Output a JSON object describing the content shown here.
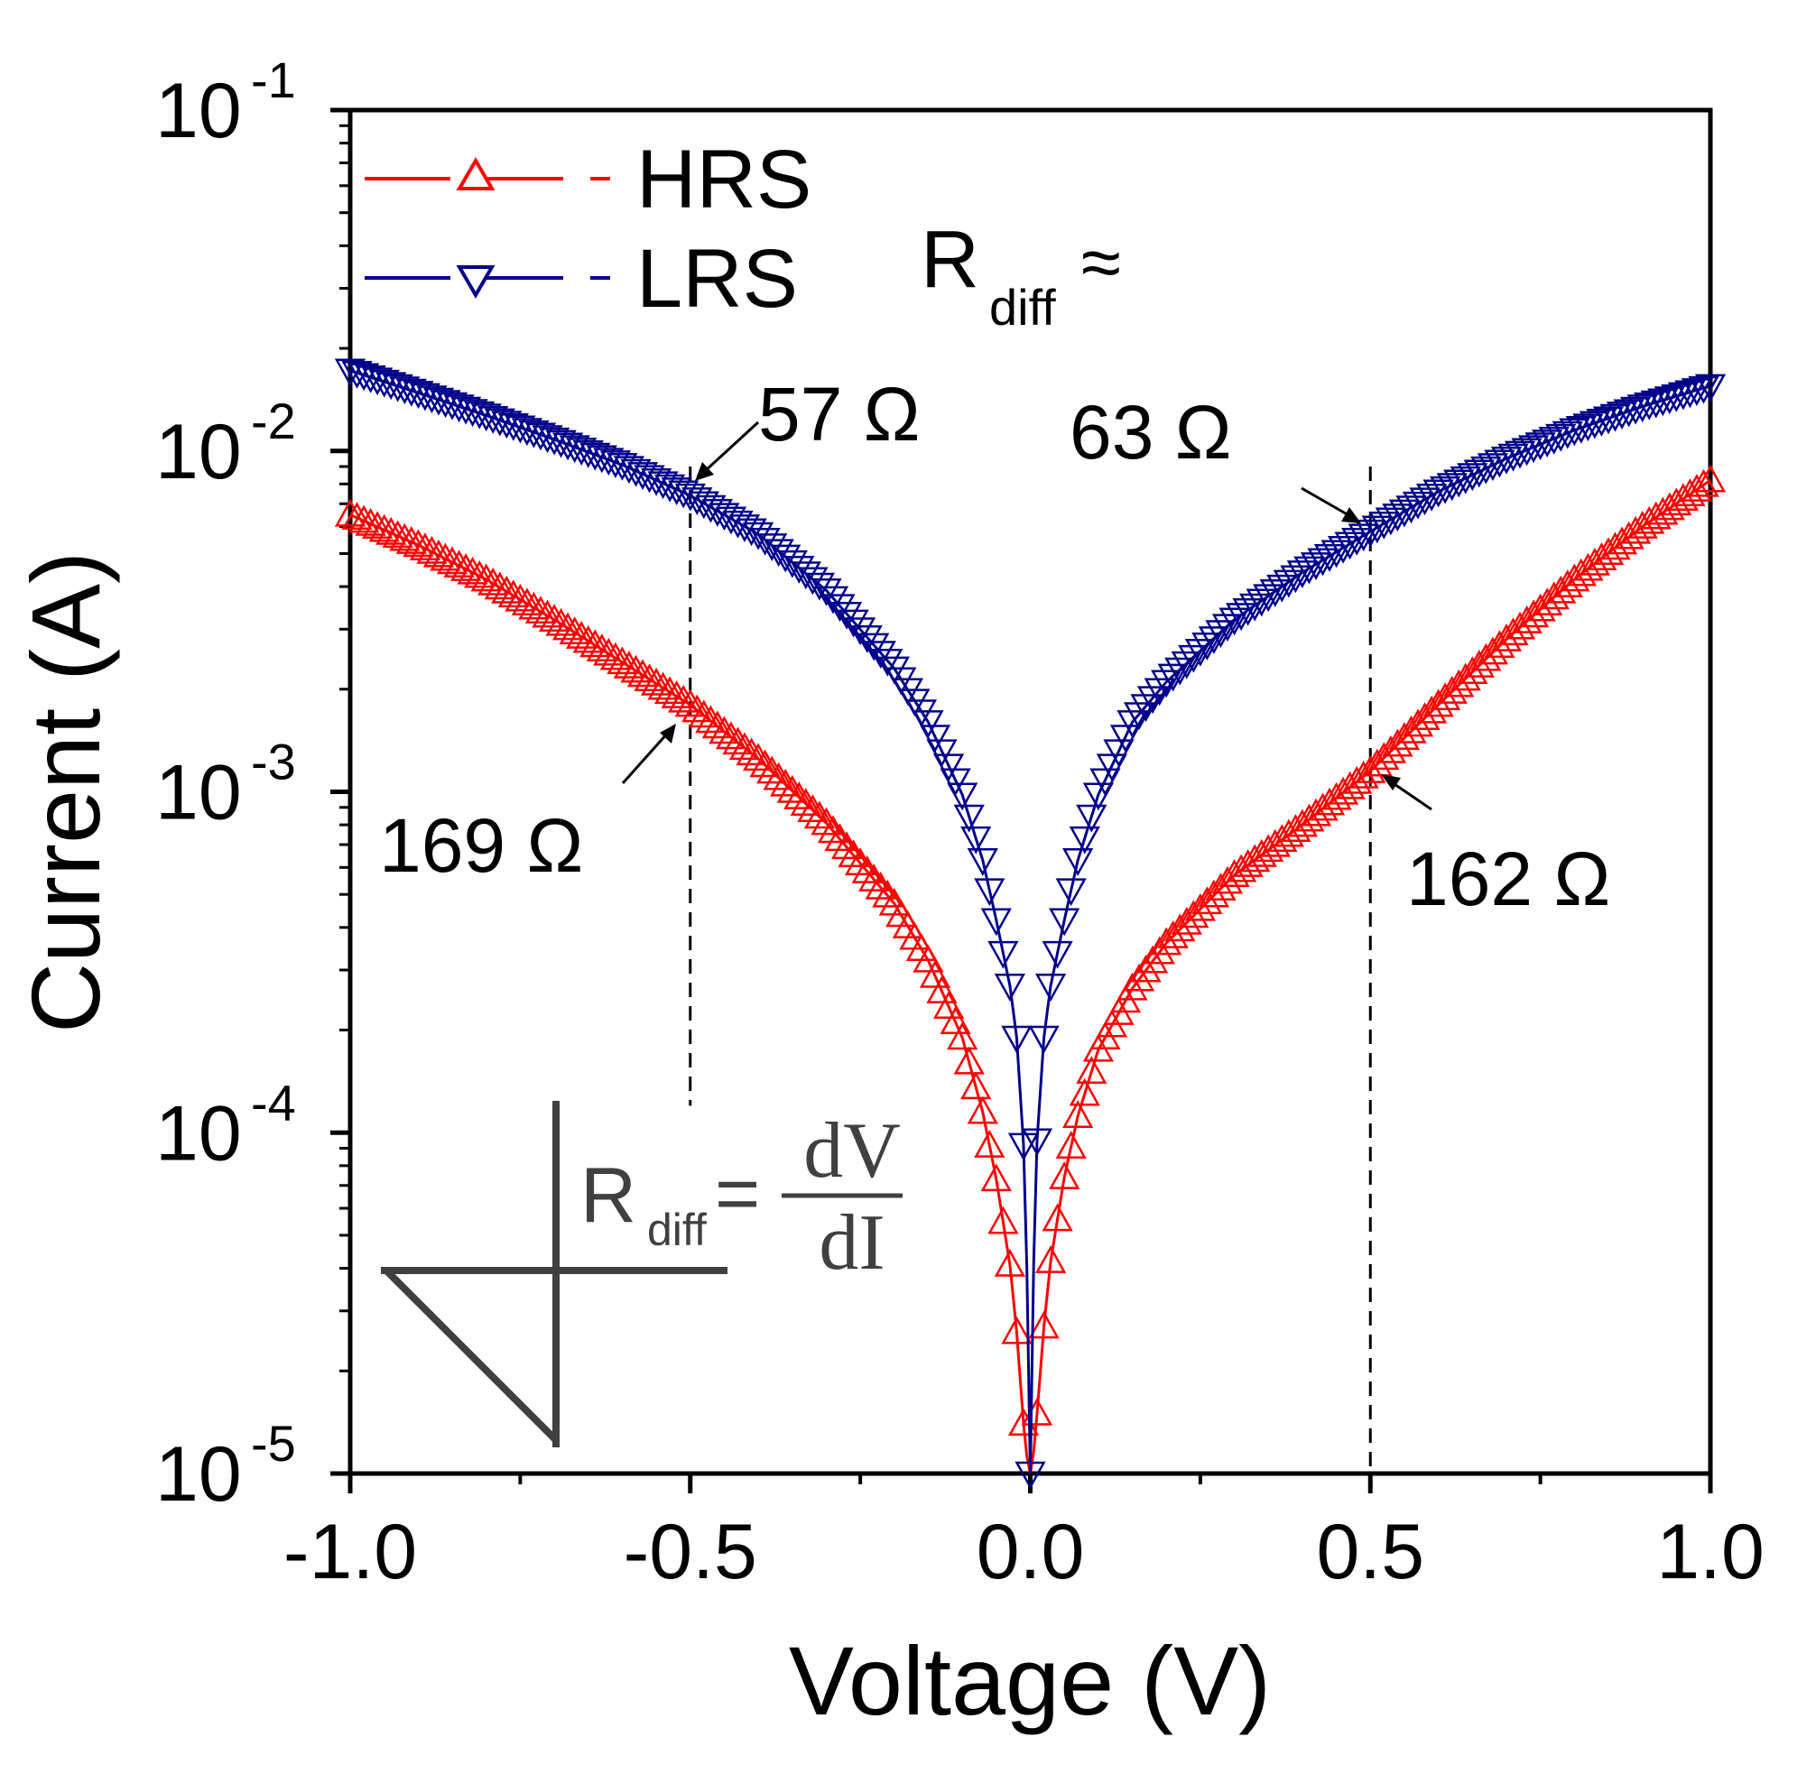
{
  "chart_data": {
    "type": "scatter",
    "title": "",
    "xlabel": "Voltage (V)",
    "ylabel": "Current (A)",
    "xlim": [
      -1.0,
      1.0
    ],
    "ylim": [
      1e-05,
      0.1
    ],
    "yscale": "log",
    "x_ticks": [
      "-1.0",
      "-0.5",
      "0.0",
      "0.5",
      "1.0"
    ],
    "y_ticks": [
      {
        "base": "10",
        "exp": "-5"
      },
      {
        "base": "10",
        "exp": "-4"
      },
      {
        "base": "10",
        "exp": "-3"
      },
      {
        "base": "10",
        "exp": "-2"
      },
      {
        "base": "10",
        "exp": "-1"
      }
    ],
    "legend_position": "top-left",
    "series": [
      {
        "name": "HRS",
        "color": "#ff0000",
        "marker": "triangle-up",
        "line": "dashed",
        "x": [
          -1.0,
          -0.9,
          -0.8,
          -0.7,
          -0.6,
          -0.5,
          -0.4,
          -0.3,
          -0.2,
          -0.15,
          -0.1,
          -0.07,
          -0.05,
          -0.03,
          -0.02,
          -0.01,
          0.0,
          0.01,
          0.02,
          0.03,
          0.05,
          0.07,
          0.1,
          0.15,
          0.2,
          0.3,
          0.4,
          0.5,
          0.6,
          0.7,
          0.8,
          0.9,
          1.0
        ],
        "y": [
          0.0065,
          0.0053,
          0.0042,
          0.0032,
          0.0024,
          0.0018,
          0.00125,
          0.00081,
          0.00047,
          0.00032,
          0.00019,
          0.000115,
          7.3e-05,
          4.1e-05,
          2.6e-05,
          1.4e-05,
          9e-06,
          1.5e-05,
          2.7e-05,
          4.2e-05,
          7.4e-05,
          0.000112,
          0.000175,
          0.000265,
          0.00036,
          0.00057,
          0.0008,
          0.00115,
          0.0018,
          0.0028,
          0.0042,
          0.006,
          0.0082
        ]
      },
      {
        "name": "LRS",
        "color": "#00008b",
        "marker": "triangle-down",
        "line": "dashed",
        "x": [
          -1.0,
          -0.9,
          -0.8,
          -0.7,
          -0.6,
          -0.5,
          -0.4,
          -0.3,
          -0.2,
          -0.15,
          -0.1,
          -0.07,
          -0.05,
          -0.03,
          -0.02,
          -0.01,
          -0.005,
          0.0,
          0.005,
          0.01,
          0.02,
          0.03,
          0.05,
          0.07,
          0.1,
          0.15,
          0.2,
          0.3,
          0.4,
          0.5,
          0.6,
          0.7,
          0.8,
          0.9,
          1.0
        ],
        "y": [
          0.0172,
          0.0148,
          0.0127,
          0.0108,
          0.0091,
          0.0074,
          0.0057,
          0.0039,
          0.0023,
          0.0016,
          0.00098,
          0.00063,
          0.00042,
          0.00027,
          0.00019,
          9.2e-05,
          4e-05,
          1e-05,
          4.2e-05,
          9.5e-05,
          0.00019,
          0.00027,
          0.00042,
          0.00063,
          0.00098,
          0.0016,
          0.0021,
          0.0032,
          0.0044,
          0.0058,
          0.0076,
          0.0095,
          0.0115,
          0.0135,
          0.0155
        ]
      }
    ],
    "annotations": {
      "rdiff_label": "R",
      "rdiff_sub": "diff",
      "approx": "≈",
      "lrs_left": "57 Ω",
      "lrs_right": "63 Ω",
      "hrs_left": "169 Ω",
      "hrs_right": "162 Ω",
      "formula_lhs": "R",
      "formula_sub": "diff",
      "formula_eq": "=",
      "formula_num": "dV",
      "formula_den": "dI"
    }
  }
}
